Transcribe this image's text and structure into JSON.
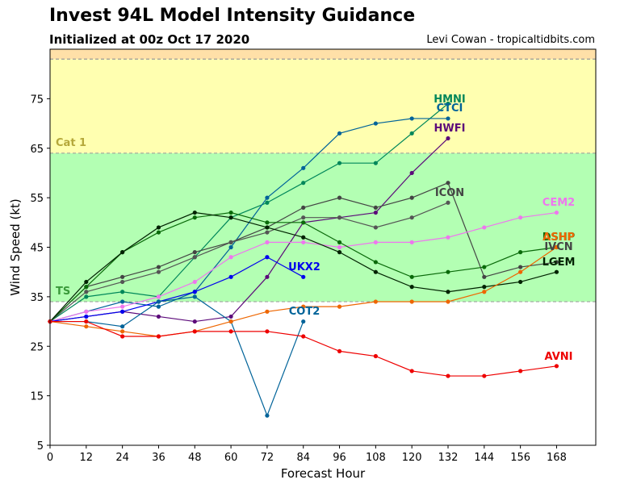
{
  "title": "Invest 94L Model Intensity Guidance",
  "subtitle": "Initialized at 00z Oct 17 2020",
  "credit": "Levi Cowan - tropicaltidbits.com",
  "chart_data": {
    "type": "line",
    "xlabel": "Forecast Hour",
    "ylabel": "Wind Speed (kt)",
    "xlim": [
      0,
      181
    ],
    "ylim": [
      5,
      85
    ],
    "xticks": [
      0,
      12,
      24,
      36,
      48,
      60,
      72,
      84,
      96,
      108,
      120,
      132,
      144,
      156,
      168
    ],
    "yticks": [
      5,
      15,
      25,
      35,
      45,
      55,
      65,
      75
    ],
    "bands": [
      {
        "name": "TS",
        "from": 34,
        "to": 64,
        "color": "#b3ffb3",
        "label_color": "#3a9a3a"
      },
      {
        "name": "Cat 1",
        "from": 64,
        "to": 83,
        "color": "#ffffb0",
        "label_color": "#b5a83a"
      },
      {
        "name": "",
        "from": 83,
        "to": 85,
        "color": "#ffe0a8",
        "label_color": "#c08040"
      }
    ],
    "series": [
      {
        "name": "HMNI",
        "color": "#00875a",
        "x": [
          0,
          12,
          24,
          36,
          48,
          60,
          72,
          84,
          96,
          108,
          120,
          132
        ],
        "y": [
          30,
          35,
          36,
          35,
          43,
          51,
          54,
          58,
          62,
          62,
          68,
          74
        ]
      },
      {
        "name": "CTCI",
        "color": "#006399",
        "x": [
          0,
          12,
          24,
          36,
          48,
          60,
          72,
          84,
          96,
          108,
          120,
          132
        ],
        "y": [
          30,
          32,
          34,
          33,
          36,
          45,
          55,
          61,
          68,
          70,
          71,
          71
        ]
      },
      {
        "name": "HWFI",
        "color": "#5c0a7a",
        "x": [
          0,
          12,
          24,
          36,
          48,
          60,
          72,
          84,
          96,
          108,
          120,
          132
        ],
        "y": [
          30,
          31,
          32,
          31,
          30,
          31,
          39,
          50,
          51,
          52,
          60,
          67
        ]
      },
      {
        "name": "ICON",
        "color": "#444444",
        "x": [
          0,
          12,
          24,
          36,
          48,
          60,
          72,
          84,
          96,
          108,
          120,
          132,
          144,
          156,
          168
        ],
        "y": [
          30,
          37,
          39,
          41,
          44,
          46,
          49,
          53,
          55,
          53,
          55,
          58,
          39,
          41,
          42
        ]
      },
      {
        "name": "",
        "color": "#555555",
        "x": [
          0,
          12,
          24,
          36,
          48,
          60,
          72,
          84,
          96,
          108,
          120,
          132
        ],
        "y": [
          30,
          36,
          38,
          40,
          43,
          46,
          48,
          51,
          51,
          49,
          51,
          54
        ]
      },
      {
        "name": "CEM2",
        "color": "#ee77ee",
        "x": [
          0,
          12,
          24,
          36,
          48,
          60,
          72,
          84,
          96,
          108,
          120,
          132,
          144,
          156,
          168
        ],
        "y": [
          30,
          32,
          33,
          35,
          38,
          43,
          46,
          46,
          45,
          46,
          46,
          47,
          49,
          51,
          52
        ]
      },
      {
        "name": "DSHP",
        "color": "#0a6a0a",
        "x": [
          0,
          12,
          24,
          36,
          48,
          60,
          72,
          84,
          96,
          108,
          120,
          132,
          144,
          156,
          168
        ],
        "y": [
          30,
          37,
          44,
          48,
          51,
          52,
          50,
          50,
          46,
          42,
          39,
          40,
          41,
          44,
          45
        ]
      },
      {
        "name": "LGEM",
        "color": "#002200",
        "x": [
          0,
          12,
          24,
          36,
          48,
          60,
          72,
          84,
          96,
          108,
          120,
          132,
          144,
          156,
          168
        ],
        "y": [
          30,
          38,
          44,
          49,
          52,
          51,
          49,
          47,
          44,
          40,
          37,
          36,
          37,
          38,
          40
        ]
      },
      {
        "name": "UKX2",
        "color": "#0000ee",
        "x": [
          0,
          12,
          24,
          36,
          48,
          60,
          72,
          84
        ],
        "y": [
          30,
          31,
          32,
          34,
          36,
          39,
          43,
          39
        ]
      },
      {
        "name": "COT2",
        "color": "#006399",
        "x": [
          0,
          12,
          24,
          36,
          48,
          60,
          72,
          84
        ],
        "y": [
          30,
          30,
          29,
          34,
          35,
          30,
          11,
          30
        ]
      },
      {
        "name": "ASHP",
        "color": "#ee6600",
        "x": [
          0,
          12,
          24,
          36,
          48,
          60,
          72,
          84,
          96,
          108,
          120,
          132,
          144,
          156,
          168
        ],
        "y": [
          30,
          29,
          28,
          27,
          28,
          30,
          32,
          33,
          33,
          34,
          34,
          34,
          36,
          40,
          45
        ]
      },
      {
        "name": "AVNI",
        "color": "#ee0000",
        "x": [
          0,
          12,
          24,
          36,
          48,
          60,
          72,
          84,
          96,
          108,
          120,
          132,
          144,
          156,
          168
        ],
        "y": [
          30,
          30,
          27,
          27,
          28,
          28,
          28,
          27,
          24,
          23,
          20,
          19,
          19,
          20,
          21
        ]
      }
    ],
    "labels": [
      {
        "text": "HMNI",
        "color": "#00875a"
      },
      {
        "text": "CTCI",
        "color": "#006399"
      },
      {
        "text": "HWFI",
        "color": "#5c0a7a"
      },
      {
        "text": "ICON",
        "color": "#444444"
      },
      {
        "text": "CEM2",
        "color": "#ee77ee"
      },
      {
        "text": "DSHP",
        "color": "#0a6a0a"
      },
      {
        "text": "ASHP",
        "color": "#ee6600"
      },
      {
        "text": "IVCN",
        "color": "#444444"
      },
      {
        "text": "LGEM",
        "color": "#002200"
      },
      {
        "text": "UKX2",
        "color": "#0000ee"
      },
      {
        "text": "COT2",
        "color": "#006399"
      },
      {
        "text": "AVNI",
        "color": "#ee0000"
      }
    ],
    "grid": false
  }
}
